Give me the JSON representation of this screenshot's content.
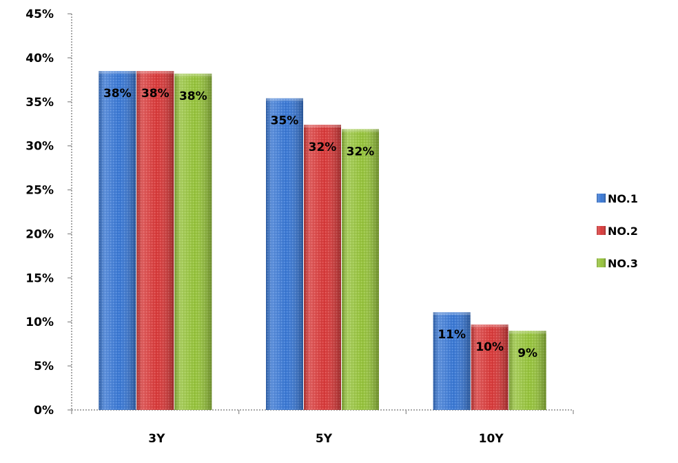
{
  "chart_data": {
    "type": "bar",
    "categories": [
      "3Y",
      "5Y",
      "10Y"
    ],
    "series": [
      {
        "name": "NO.1",
        "color": "#3a78d4",
        "values": [
          38.5,
          35.4,
          11.1
        ],
        "labels": [
          "38%",
          "35%",
          "11%"
        ]
      },
      {
        "name": "NO.2",
        "color": "#d83a3a",
        "values": [
          38.5,
          32.4,
          9.7
        ],
        "labels": [
          "38%",
          "32%",
          "10%"
        ]
      },
      {
        "name": "NO.3",
        "color": "#96c33c",
        "values": [
          38.2,
          31.9,
          9.0
        ],
        "labels": [
          "38%",
          "32%",
          "9%"
        ]
      }
    ],
    "ylim": [
      0,
      45
    ],
    "yticks": [
      "0%",
      "5%",
      "10%",
      "15%",
      "20%",
      "25%",
      "30%",
      "35%",
      "40%",
      "45%"
    ],
    "ytick_values": [
      0,
      5,
      10,
      15,
      20,
      25,
      30,
      35,
      40,
      45
    ],
    "legend_position": "right",
    "grid": false
  }
}
